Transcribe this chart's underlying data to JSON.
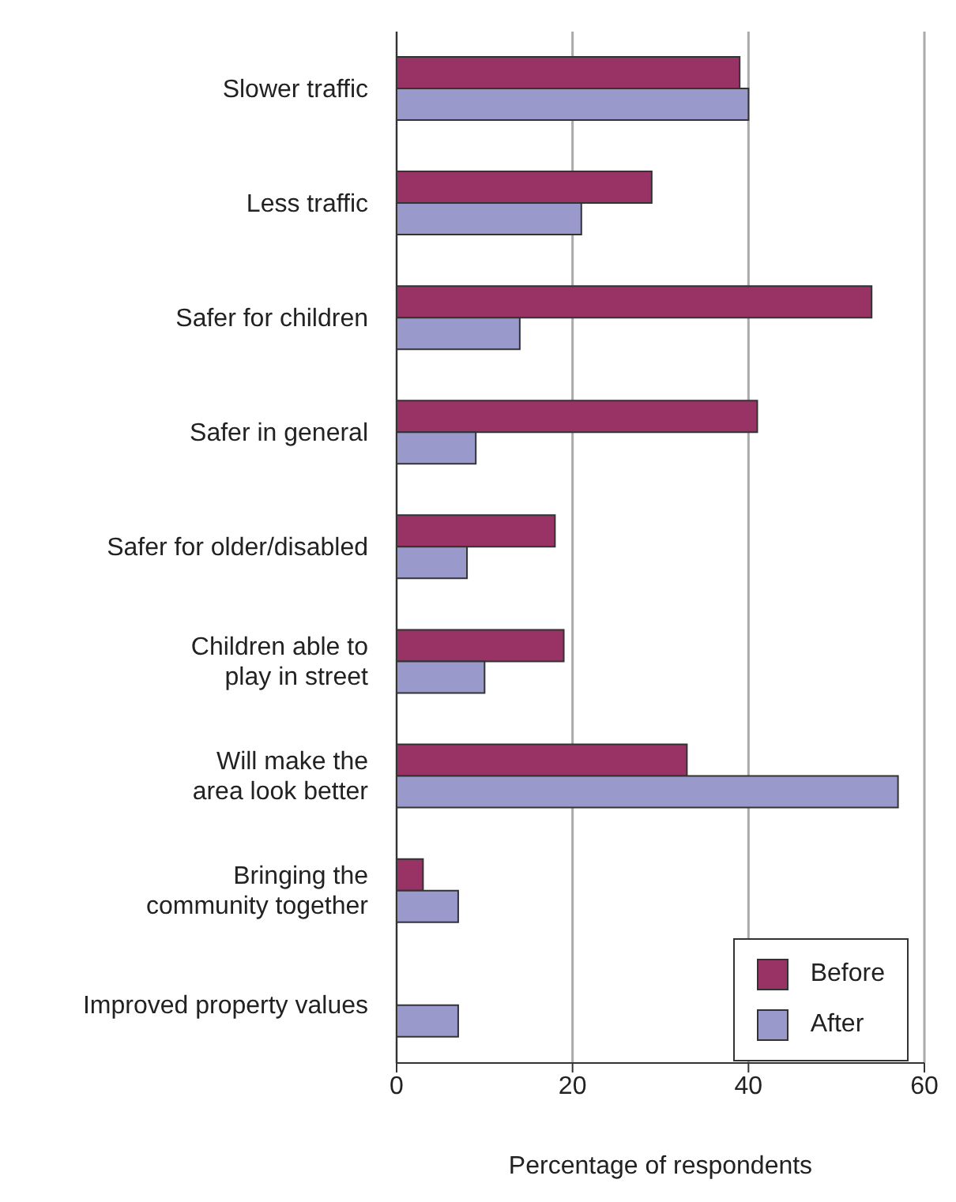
{
  "chart_data": {
    "type": "bar",
    "orientation": "horizontal",
    "xlabel": "Percentage of respondents",
    "categories": [
      "Slower traffic",
      "Less traffic",
      "Safer for children",
      "Safer in general",
      "Safer for older/disabled",
      "Children able to play in street",
      "Will make the area look better",
      "Bringing the community together",
      "Improved property values"
    ],
    "series": [
      {
        "name": "Before",
        "color": "#993366",
        "values": [
          39,
          29,
          54,
          41,
          18,
          19,
          33,
          3,
          null
        ]
      },
      {
        "name": "After",
        "color": "#9999cc",
        "values": [
          40,
          21,
          14,
          9,
          8,
          10,
          57,
          7,
          7
        ]
      }
    ],
    "xlim": [
      0,
      60
    ],
    "xticks": [
      0,
      20,
      40,
      60
    ],
    "grid": "x",
    "legend": "bottom right"
  }
}
